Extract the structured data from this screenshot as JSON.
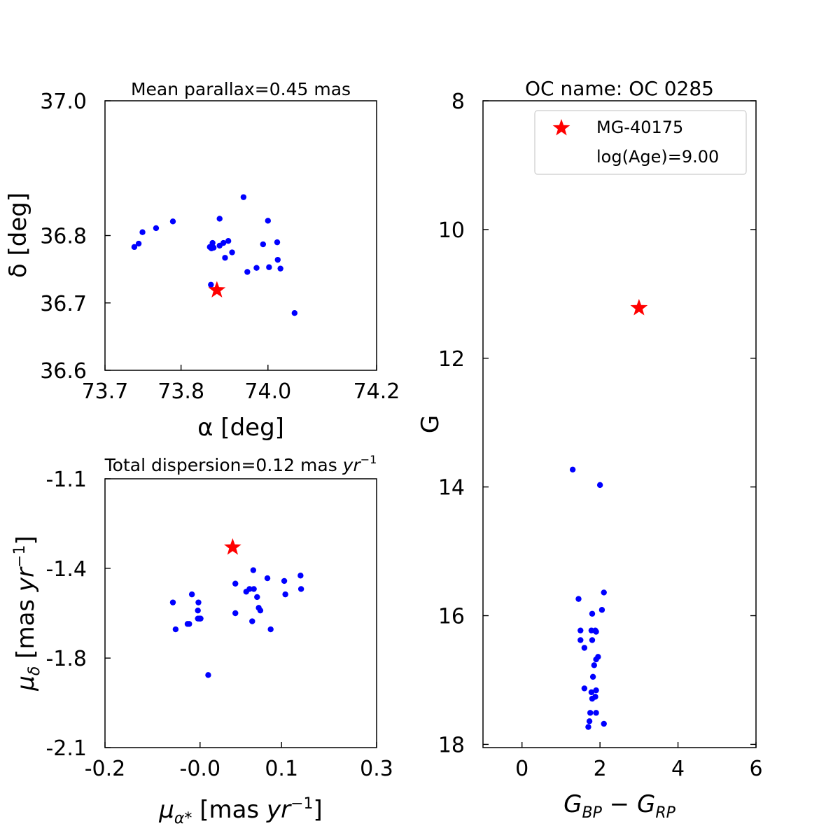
{
  "chart_data": [
    {
      "type": "scatter",
      "title": "Mean parallax=0.45 mas",
      "xlabel": "α [deg]",
      "ylabel": "δ [deg]",
      "xlim": [
        73.7,
        74.2
      ],
      "ylim": [
        36.6,
        37.0
      ],
      "xticks": [
        "73.7",
        "73.8",
        "74.0",
        "74.2"
      ],
      "xtick_values": [
        73.7,
        73.84,
        74.0,
        74.2
      ],
      "yticks": [
        "36.6",
        "36.7",
        "36.8",
        "37.0"
      ],
      "ytick_values": [
        36.6,
        36.7,
        36.8,
        37.0
      ],
      "series": [
        {
          "color": "#0000ff",
          "marker": "circle",
          "points": [
            [
              73.825,
              36.821
            ],
            [
              73.911,
              36.825
            ],
            [
              73.955,
              36.857
            ],
            [
              74.0,
              36.822
            ],
            [
              73.898,
              36.789
            ],
            [
              73.911,
              36.785
            ],
            [
              73.927,
              36.792
            ],
            [
              73.893,
              36.783
            ],
            [
              73.9,
              36.782
            ],
            [
              73.896,
              36.781
            ],
            [
              73.918,
              36.789
            ],
            [
              73.991,
              36.787
            ],
            [
              74.017,
              36.79
            ],
            [
              73.934,
              36.775
            ],
            [
              73.921,
              36.767
            ],
            [
              74.018,
              36.764
            ],
            [
              73.979,
              36.752
            ],
            [
              74.002,
              36.753
            ],
            [
              74.023,
              36.751
            ],
            [
              73.962,
              36.746
            ],
            [
              73.895,
              36.727
            ],
            [
              73.794,
              36.811
            ],
            [
              73.769,
              36.805
            ],
            [
              73.762,
              36.788
            ],
            [
              73.754,
              36.783
            ],
            [
              74.049,
              36.685
            ]
          ]
        },
        {
          "name": "MG-40175",
          "color": "#ff0000",
          "marker": "star",
          "points": [
            [
              73.906,
              36.719
            ]
          ]
        }
      ]
    },
    {
      "type": "scatter",
      "title": "Total dispersion=0.12 mas yr⁻¹",
      "xlabel": "μα* [mas yr⁻¹]",
      "ylabel": "μδ [mas yr⁻¹]",
      "xlim": [
        -0.2,
        0.3
      ],
      "ylim": [
        -2.1,
        -1.1
      ],
      "xticks": [
        "-0.2",
        "-0.0",
        "0.1",
        "0.3"
      ],
      "xtick_values": [
        -0.2,
        -0.025,
        0.125,
        0.3
      ],
      "yticks": [
        "-1.1",
        "-1.4",
        "-1.8",
        "-2.1"
      ],
      "ytick_values": [
        -1.1,
        -1.433,
        -1.767,
        -2.1
      ],
      "series": [
        {
          "color": "#0000ff",
          "marker": "circle",
          "points": [
            [
              -0.075,
              -1.56
            ],
            [
              -0.04,
              -1.53
            ],
            [
              -0.029,
              -1.59
            ],
            [
              -0.029,
              -1.62
            ],
            [
              -0.027,
              -1.62
            ],
            [
              -0.028,
              -1.56
            ],
            [
              -0.025,
              -1.62
            ],
            [
              -0.024,
              -1.62
            ],
            [
              -0.045,
              -1.64
            ],
            [
              -0.048,
              -1.64
            ],
            [
              -0.07,
              -1.66
            ],
            [
              -0.01,
              -1.83
            ],
            [
              0.04,
              -1.49
            ],
            [
              0.04,
              -1.6
            ],
            [
              0.06,
              -1.52
            ],
            [
              0.066,
              -1.51
            ],
            [
              0.074,
              -1.51
            ],
            [
              0.073,
              -1.44
            ],
            [
              0.08,
              -1.54
            ],
            [
              0.083,
              -1.58
            ],
            [
              0.086,
              -1.59
            ],
            [
              0.099,
              -1.47
            ],
            [
              0.105,
              -1.66
            ],
            [
              0.13,
              -1.48
            ],
            [
              0.132,
              -1.53
            ],
            [
              0.16,
              -1.46
            ],
            [
              0.161,
              -1.51
            ],
            [
              0.071,
              -1.63
            ]
          ]
        },
        {
          "name": "MG-40175",
          "color": "#ff0000",
          "marker": "star",
          "points": [
            [
              0.035,
              -1.355
            ]
          ]
        }
      ]
    },
    {
      "type": "scatter",
      "title": "OC name: OC 0285",
      "xlabel": "G_BP − G_RP",
      "ylabel": "G",
      "xlim": [
        -1,
        6
      ],
      "ylim": [
        18.05,
        8
      ],
      "inverted_y": true,
      "xticks": [
        "0",
        "2",
        "4",
        "6"
      ],
      "yticks": [
        "8",
        "10",
        "12",
        "14",
        "16",
        "18"
      ],
      "legend": {
        "position": "top-right",
        "entries": [
          {
            "marker": "star",
            "color": "#ff0000",
            "label": "MG-40175"
          },
          {
            "marker": "none",
            "label": "log(Age)=9.00"
          }
        ]
      },
      "series": [
        {
          "color": "#0000ff",
          "marker": "circle",
          "points": [
            [
              1.3,
              13.73
            ],
            [
              2.0,
              13.97
            ],
            [
              2.1,
              15.64
            ],
            [
              1.45,
              15.74
            ],
            [
              2.05,
              15.91
            ],
            [
              1.8,
              15.97
            ],
            [
              1.5,
              16.23
            ],
            [
              1.78,
              16.23
            ],
            [
              1.88,
              16.23
            ],
            [
              1.9,
              16.25
            ],
            [
              1.5,
              16.38
            ],
            [
              1.8,
              16.38
            ],
            [
              1.6,
              16.5
            ],
            [
              1.95,
              16.64
            ],
            [
              1.9,
              16.68
            ],
            [
              1.85,
              16.77
            ],
            [
              1.82,
              16.95
            ],
            [
              1.6,
              17.13
            ],
            [
              1.9,
              17.16
            ],
            [
              1.78,
              17.19
            ],
            [
              1.8,
              17.29
            ],
            [
              1.88,
              17.26
            ],
            [
              1.75,
              17.51
            ],
            [
              1.9,
              17.51
            ],
            [
              1.73,
              17.64
            ],
            [
              2.1,
              17.68
            ],
            [
              1.7,
              17.73
            ]
          ]
        },
        {
          "name": "MG-40175",
          "color": "#ff0000",
          "marker": "star",
          "points": [
            [
              3.0,
              11.22
            ]
          ]
        }
      ]
    }
  ]
}
